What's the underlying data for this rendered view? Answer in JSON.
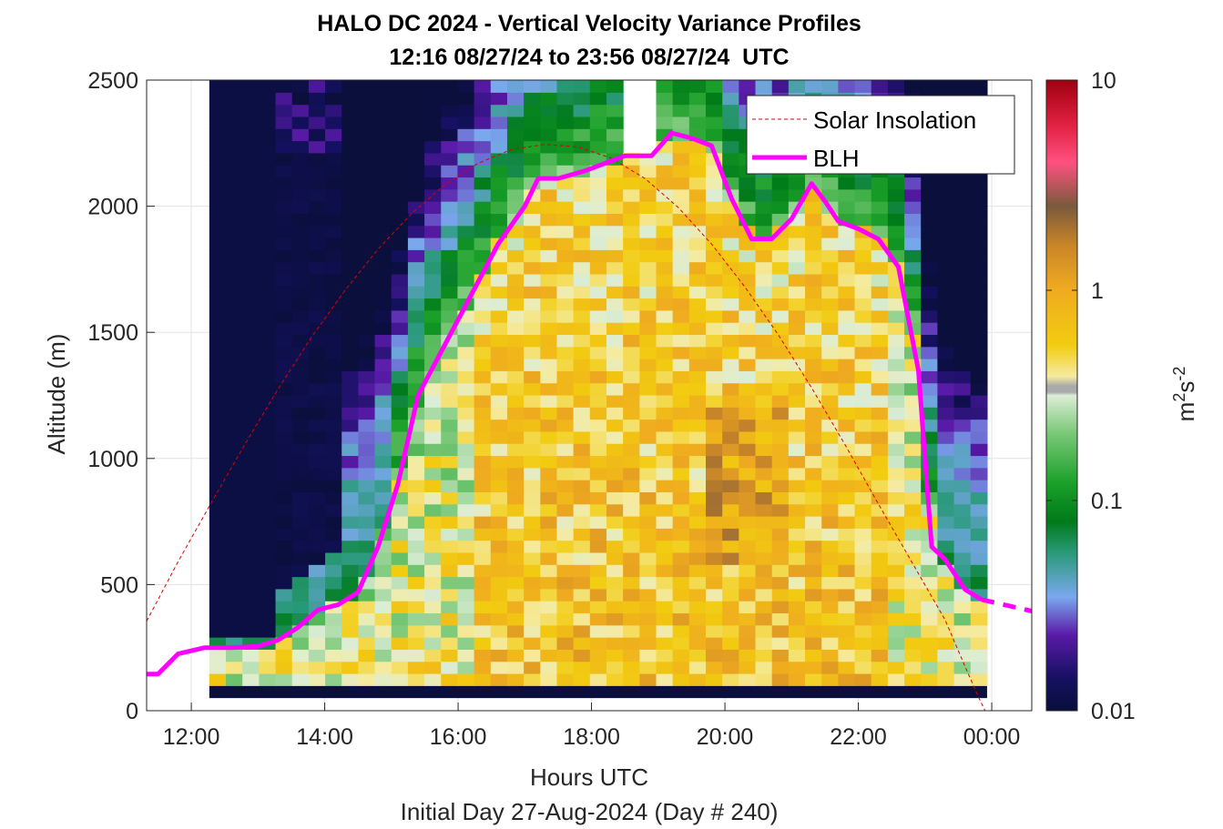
{
  "chart_data": {
    "type": "heatmap",
    "title": "HALO DC 2024 - Vertical Velocity Variance Profiles",
    "subtitle": "12:16 08/27/24 to 23:56 08/27/24  UTC",
    "xlabel": "Hours UTC",
    "ylabel": "Altitude (m)",
    "footnote": "Initial Day 27-Aug-2024 (Day # 240)",
    "x_range_hours": [
      11.33,
      24.6
    ],
    "y_range_m": [
      0,
      2500
    ],
    "x_ticks": [
      12,
      14,
      16,
      18,
      20,
      22,
      24
    ],
    "x_tick_labels": [
      "12:00",
      "14:00",
      "16:00",
      "18:00",
      "20:00",
      "22:00",
      "00:00"
    ],
    "y_ticks": [
      0,
      500,
      1000,
      1500,
      2000,
      2500
    ],
    "y_tick_labels": [
      "0",
      "500",
      "1000",
      "1500",
      "2000",
      "2500"
    ],
    "grid": true,
    "legend_position": "top-right",
    "colorbar": {
      "label_base": "m",
      "label_exp1": "2",
      "label_mid": "s",
      "label_exp2": "-2",
      "scale": "log",
      "range": [
        0.01,
        10
      ],
      "ticks": [
        0.01,
        0.1,
        1,
        10
      ],
      "tick_labels": [
        "0.01",
        "0.1",
        "1",
        "10"
      ]
    },
    "heatmap": {
      "description_of_values": "vertical velocity variance, estimated on a log scale",
      "x_start_hours": 12.27,
      "x_end_hours": 23.93,
      "y_bottom_m": 100,
      "y_top_m": 2500,
      "data_gap_hours": [
        18.5,
        18.85
      ],
      "data_gap_min_altitude_m": 2200
    },
    "series": [
      {
        "name": "Solar Insolation",
        "style": "dashed",
        "color": "#dd0000",
        "x": [
          11.33,
          11.8,
          12.3,
          12.8,
          13.3,
          13.8,
          14.3,
          14.8,
          15.3,
          15.8,
          16.3,
          16.8,
          17.3,
          17.8,
          18.3,
          18.8,
          19.3,
          19.8,
          20.3,
          20.8,
          21.3,
          21.8,
          22.3,
          22.8,
          23.3,
          23.6,
          23.8,
          23.9,
          24.6
        ],
        "y": [
          355,
          590,
          825,
          1055,
          1275,
          1480,
          1665,
          1830,
          1970,
          2085,
          2170,
          2225,
          2245,
          2235,
          2190,
          2110,
          1995,
          1850,
          1680,
          1490,
          1280,
          1055,
          820,
          590,
          360,
          175,
          55,
          0,
          0
        ]
      },
      {
        "name": "BLH",
        "style": "solid",
        "color": "#ff00ff",
        "x": [
          11.33,
          11.5,
          11.8,
          12.2,
          12.6,
          13.0,
          13.3,
          13.6,
          13.9,
          14.2,
          14.5,
          14.8,
          15.1,
          15.4,
          15.8,
          16.2,
          16.6,
          17.0,
          17.2,
          17.5,
          17.9,
          18.2,
          18.5,
          18.9,
          19.2,
          19.5,
          19.8,
          20.1,
          20.4,
          20.7,
          21.0,
          21.3,
          21.5,
          21.7,
          22.0,
          22.3,
          22.6,
          22.9,
          23.1,
          23.3,
          23.6,
          23.85
        ],
        "y": [
          145,
          145,
          225,
          250,
          250,
          255,
          280,
          330,
          400,
          420,
          470,
          650,
          900,
          1250,
          1450,
          1650,
          1850,
          2000,
          2110,
          2110,
          2140,
          2170,
          2200,
          2200,
          2290,
          2270,
          2240,
          2030,
          1870,
          1870,
          1950,
          2090,
          2020,
          1940,
          1910,
          1870,
          1760,
          1350,
          650,
          600,
          480,
          440
        ]
      },
      {
        "name": "BLH extension",
        "style": "dashed",
        "color": "#ff00ff",
        "x": [
          23.85,
          24.6
        ],
        "y": [
          440,
          395
        ]
      }
    ]
  }
}
